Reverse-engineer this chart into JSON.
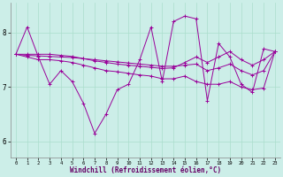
{
  "xlabel": "Windchill (Refroidissement éolien,°C)",
  "background_color": "#cceee8",
  "grid_color": "#aaddcc",
  "line_color": "#990099",
  "xlim": [
    -0.5,
    23.5
  ],
  "ylim": [
    5.7,
    8.55
  ],
  "yticks": [
    6,
    7,
    8
  ],
  "xticks": [
    0,
    1,
    2,
    3,
    4,
    5,
    6,
    7,
    8,
    9,
    10,
    11,
    12,
    13,
    14,
    15,
    16,
    17,
    18,
    19,
    20,
    21,
    22,
    23
  ],
  "series": [
    [
      7.6,
      8.1,
      7.55,
      7.05,
      7.3,
      7.1,
      6.7,
      6.15,
      6.5,
      6.95,
      7.05,
      7.5,
      8.1,
      7.1,
      8.2,
      8.3,
      8.25,
      6.75,
      7.8,
      7.55,
      7.05,
      6.9,
      7.7,
      7.65
    ],
    [
      7.6,
      7.55,
      7.5,
      7.5,
      7.48,
      7.45,
      7.4,
      7.35,
      7.3,
      7.28,
      7.25,
      7.22,
      7.2,
      7.15,
      7.15,
      7.2,
      7.1,
      7.05,
      7.05,
      7.1,
      7.0,
      6.95,
      6.98,
      7.65
    ],
    [
      7.6,
      7.58,
      7.57,
      7.56,
      7.55,
      7.54,
      7.52,
      7.5,
      7.48,
      7.46,
      7.44,
      7.42,
      7.4,
      7.38,
      7.38,
      7.4,
      7.42,
      7.3,
      7.35,
      7.42,
      7.3,
      7.22,
      7.3,
      7.65
    ],
    [
      7.6,
      7.6,
      7.6,
      7.6,
      7.58,
      7.56,
      7.52,
      7.48,
      7.45,
      7.42,
      7.4,
      7.38,
      7.36,
      7.34,
      7.35,
      7.45,
      7.55,
      7.45,
      7.55,
      7.65,
      7.5,
      7.4,
      7.5,
      7.65
    ]
  ]
}
